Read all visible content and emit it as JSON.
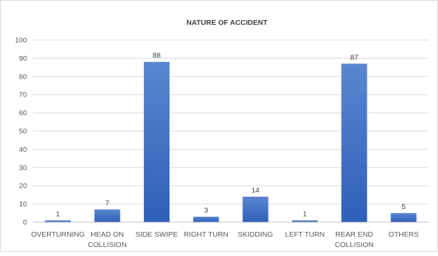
{
  "chart_data": {
    "type": "bar",
    "title": "NATURE OF ACCIDENT",
    "xlabel": "",
    "ylabel": "",
    "ylim": [
      0,
      100
    ],
    "yticks": [
      "0",
      "10",
      "20",
      "30",
      "40",
      "50",
      "60",
      "70",
      "80",
      "90",
      "100"
    ],
    "categories": [
      [
        "OVERTURNING"
      ],
      [
        "HEAD ON",
        "COLLISION"
      ],
      [
        "SIDE SWIPE"
      ],
      [
        "RIGHT TURN"
      ],
      [
        "SKIDDING"
      ],
      [
        "LEFT TURN"
      ],
      [
        "REAR END",
        "COLLISION"
      ],
      [
        "OTHERS"
      ]
    ],
    "values": [
      1,
      7,
      88,
      3,
      14,
      1,
      87,
      5
    ],
    "data_labels": [
      "1",
      "7",
      "88",
      "3",
      "14",
      "1",
      "87",
      "5"
    ],
    "grid": true,
    "legend": "none",
    "colors": {
      "bar_top": "#5a86cf",
      "bar_bottom": "#2f5fb8"
    }
  }
}
